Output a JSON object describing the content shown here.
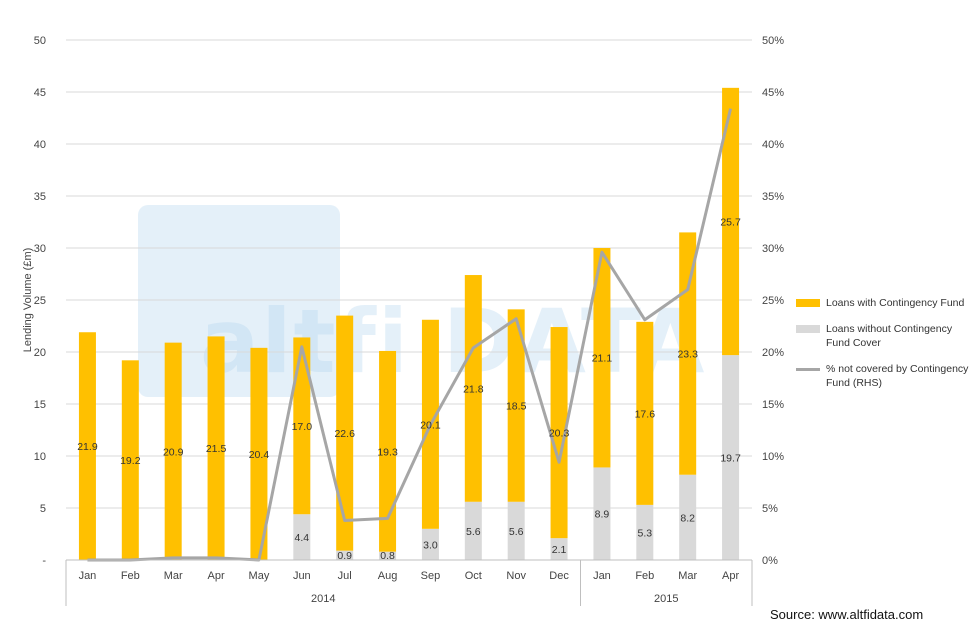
{
  "watermark": {
    "text": "altfi DATA"
  },
  "source": "Source: www.altfidata.com",
  "chart_data": {
    "type": "bar",
    "stacked": true,
    "categories": [
      "Jan",
      "Feb",
      "Mar",
      "Apr",
      "May",
      "Jun",
      "Jul",
      "Aug",
      "Sep",
      "Oct",
      "Nov",
      "Dec",
      "Jan",
      "Feb",
      "Mar",
      "Apr"
    ],
    "category_groups": [
      {
        "label": "2014",
        "start": 0,
        "end": 11
      },
      {
        "label": "2015",
        "start": 12,
        "end": 15
      }
    ],
    "series": [
      {
        "name": "Loans without Contingency Fund Cover",
        "kind": "bar",
        "color": "#d9d9d9",
        "values": [
          0,
          0,
          0,
          0,
          0,
          4.4,
          0.9,
          0.8,
          3.0,
          5.6,
          5.6,
          2.1,
          8.9,
          5.3,
          8.2,
          19.7
        ],
        "labels": [
          "",
          "",
          "",
          "",
          "",
          "4.4",
          "0.9",
          "0.8",
          "3.0",
          "5.6",
          "5.6",
          "2.1",
          "8.9",
          "5.3",
          "8.2",
          "19.7"
        ]
      },
      {
        "name": "Loans with Contingency Fund",
        "kind": "bar",
        "color": "#ffc000",
        "values": [
          21.9,
          19.2,
          20.9,
          21.5,
          20.4,
          17.0,
          22.6,
          19.3,
          20.1,
          21.8,
          18.5,
          20.3,
          21.1,
          17.6,
          23.3,
          25.7
        ],
        "labels": [
          "21.9",
          "19.2",
          "20.9",
          "21.5",
          "20.4",
          "17.0",
          "22.6",
          "19.3",
          "20.1",
          "21.8",
          "18.5",
          "20.3",
          "21.1",
          "17.6",
          "23.3",
          "25.7"
        ]
      },
      {
        "name": "% not covered by Contingency Fund (RHS)",
        "kind": "line",
        "axis": "right",
        "color": "#a6a6a6",
        "values": [
          0,
          0,
          0.2,
          0.2,
          0,
          20.5,
          3.8,
          4.0,
          13.0,
          20.4,
          23.2,
          9.4,
          29.6,
          23.1,
          26.0,
          43.4
        ]
      }
    ],
    "yaxis_left": {
      "title": "Lending Volume (£m)",
      "min": 0,
      "max": 50,
      "step": 5,
      "ticks": [
        "-",
        "5",
        "10",
        "15",
        "20",
        "25",
        "30",
        "35",
        "40",
        "45",
        "50"
      ]
    },
    "yaxis_right": {
      "min": 0,
      "max": 50,
      "step": 5,
      "ticks": [
        "0%",
        "5%",
        "10%",
        "15%",
        "20%",
        "25%",
        "30%",
        "35%",
        "40%",
        "45%",
        "50%"
      ]
    },
    "grid": true,
    "legend_position": "right",
    "legend": [
      {
        "label": "Loans with Contingency Fund",
        "color": "#ffc000",
        "kind": "bar"
      },
      {
        "label": "Loans without Contingency Fund Cover",
        "color": "#d9d9d9",
        "kind": "bar"
      },
      {
        "label": "% not covered by Contingency Fund (RHS)",
        "color": "#a6a6a6",
        "kind": "line"
      }
    ]
  }
}
